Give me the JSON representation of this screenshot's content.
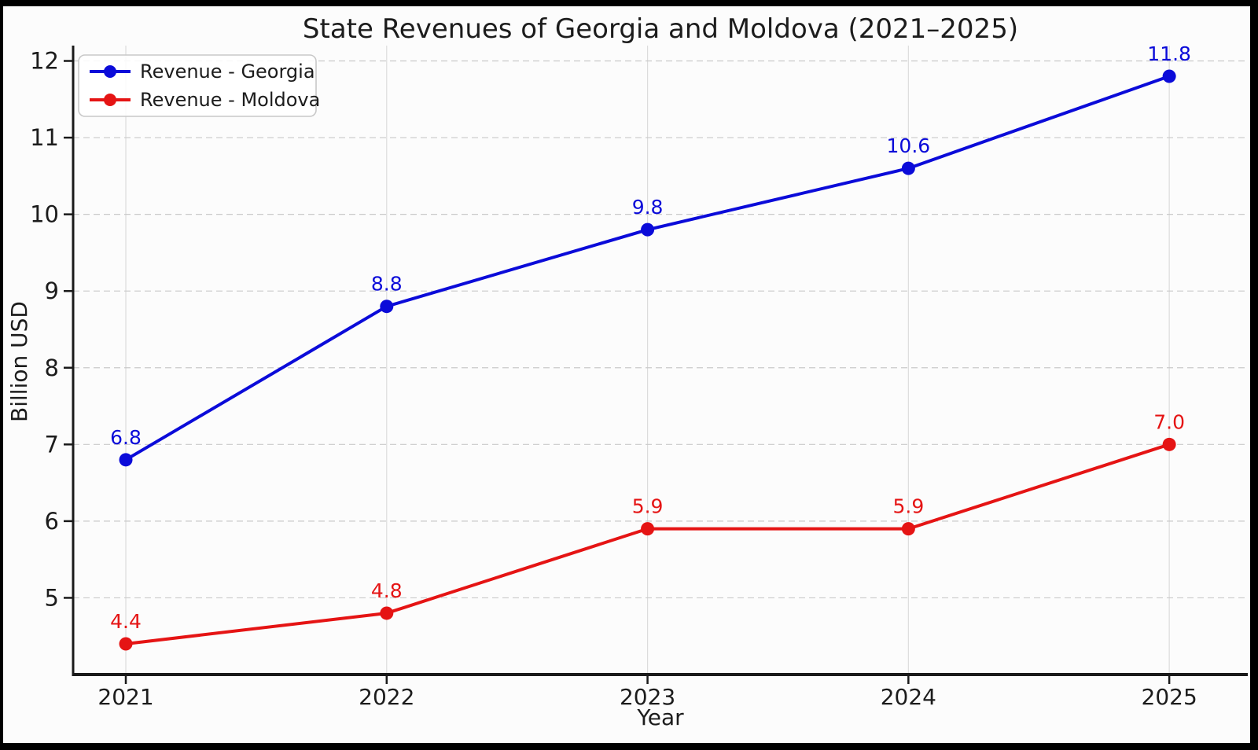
{
  "chart_data": {
    "type": "line",
    "title": "State Revenues of Georgia and Moldova (2021–2025)",
    "xlabel": "Year",
    "ylabel": "Billion USD",
    "x": [
      2021,
      2022,
      2023,
      2024,
      2025
    ],
    "x_tick_labels": [
      "2021",
      "2022",
      "2023",
      "2024",
      "2025"
    ],
    "yticks": [
      5,
      6,
      7,
      8,
      9,
      10,
      11,
      12
    ],
    "y_tick_labels": [
      "5",
      "6",
      "7",
      "8",
      "9",
      "10",
      "11",
      "12"
    ],
    "xlim": [
      2020.798,
      2025.301
    ],
    "ylim": [
      4.0,
      12.2
    ],
    "grid": true,
    "marker": "circle",
    "legend_position": "upper left",
    "series": [
      {
        "name": "Revenue - Georgia",
        "color": "#0b0bd9",
        "values": [
          6.8,
          8.8,
          9.8,
          10.6,
          11.8
        ],
        "point_labels": [
          "6.8",
          "8.8",
          "9.8",
          "10.6",
          "11.8"
        ]
      },
      {
        "name": "Revenue - Moldova",
        "color": "#e51414",
        "values": [
          4.4,
          4.8,
          5.9,
          5.9,
          7.0
        ],
        "point_labels": [
          "4.4",
          "4.8",
          "5.9",
          "5.9",
          "7.0"
        ]
      }
    ],
    "colors": {
      "text": "#1c1c1c",
      "spine": "#1a1a1a",
      "grid_horizontal": "#c9c9c9",
      "grid_vertical": "#dcdcdc",
      "legend_border": "#c8c8c8",
      "background": "#fcfcfc",
      "frame_border": "#000000"
    }
  }
}
